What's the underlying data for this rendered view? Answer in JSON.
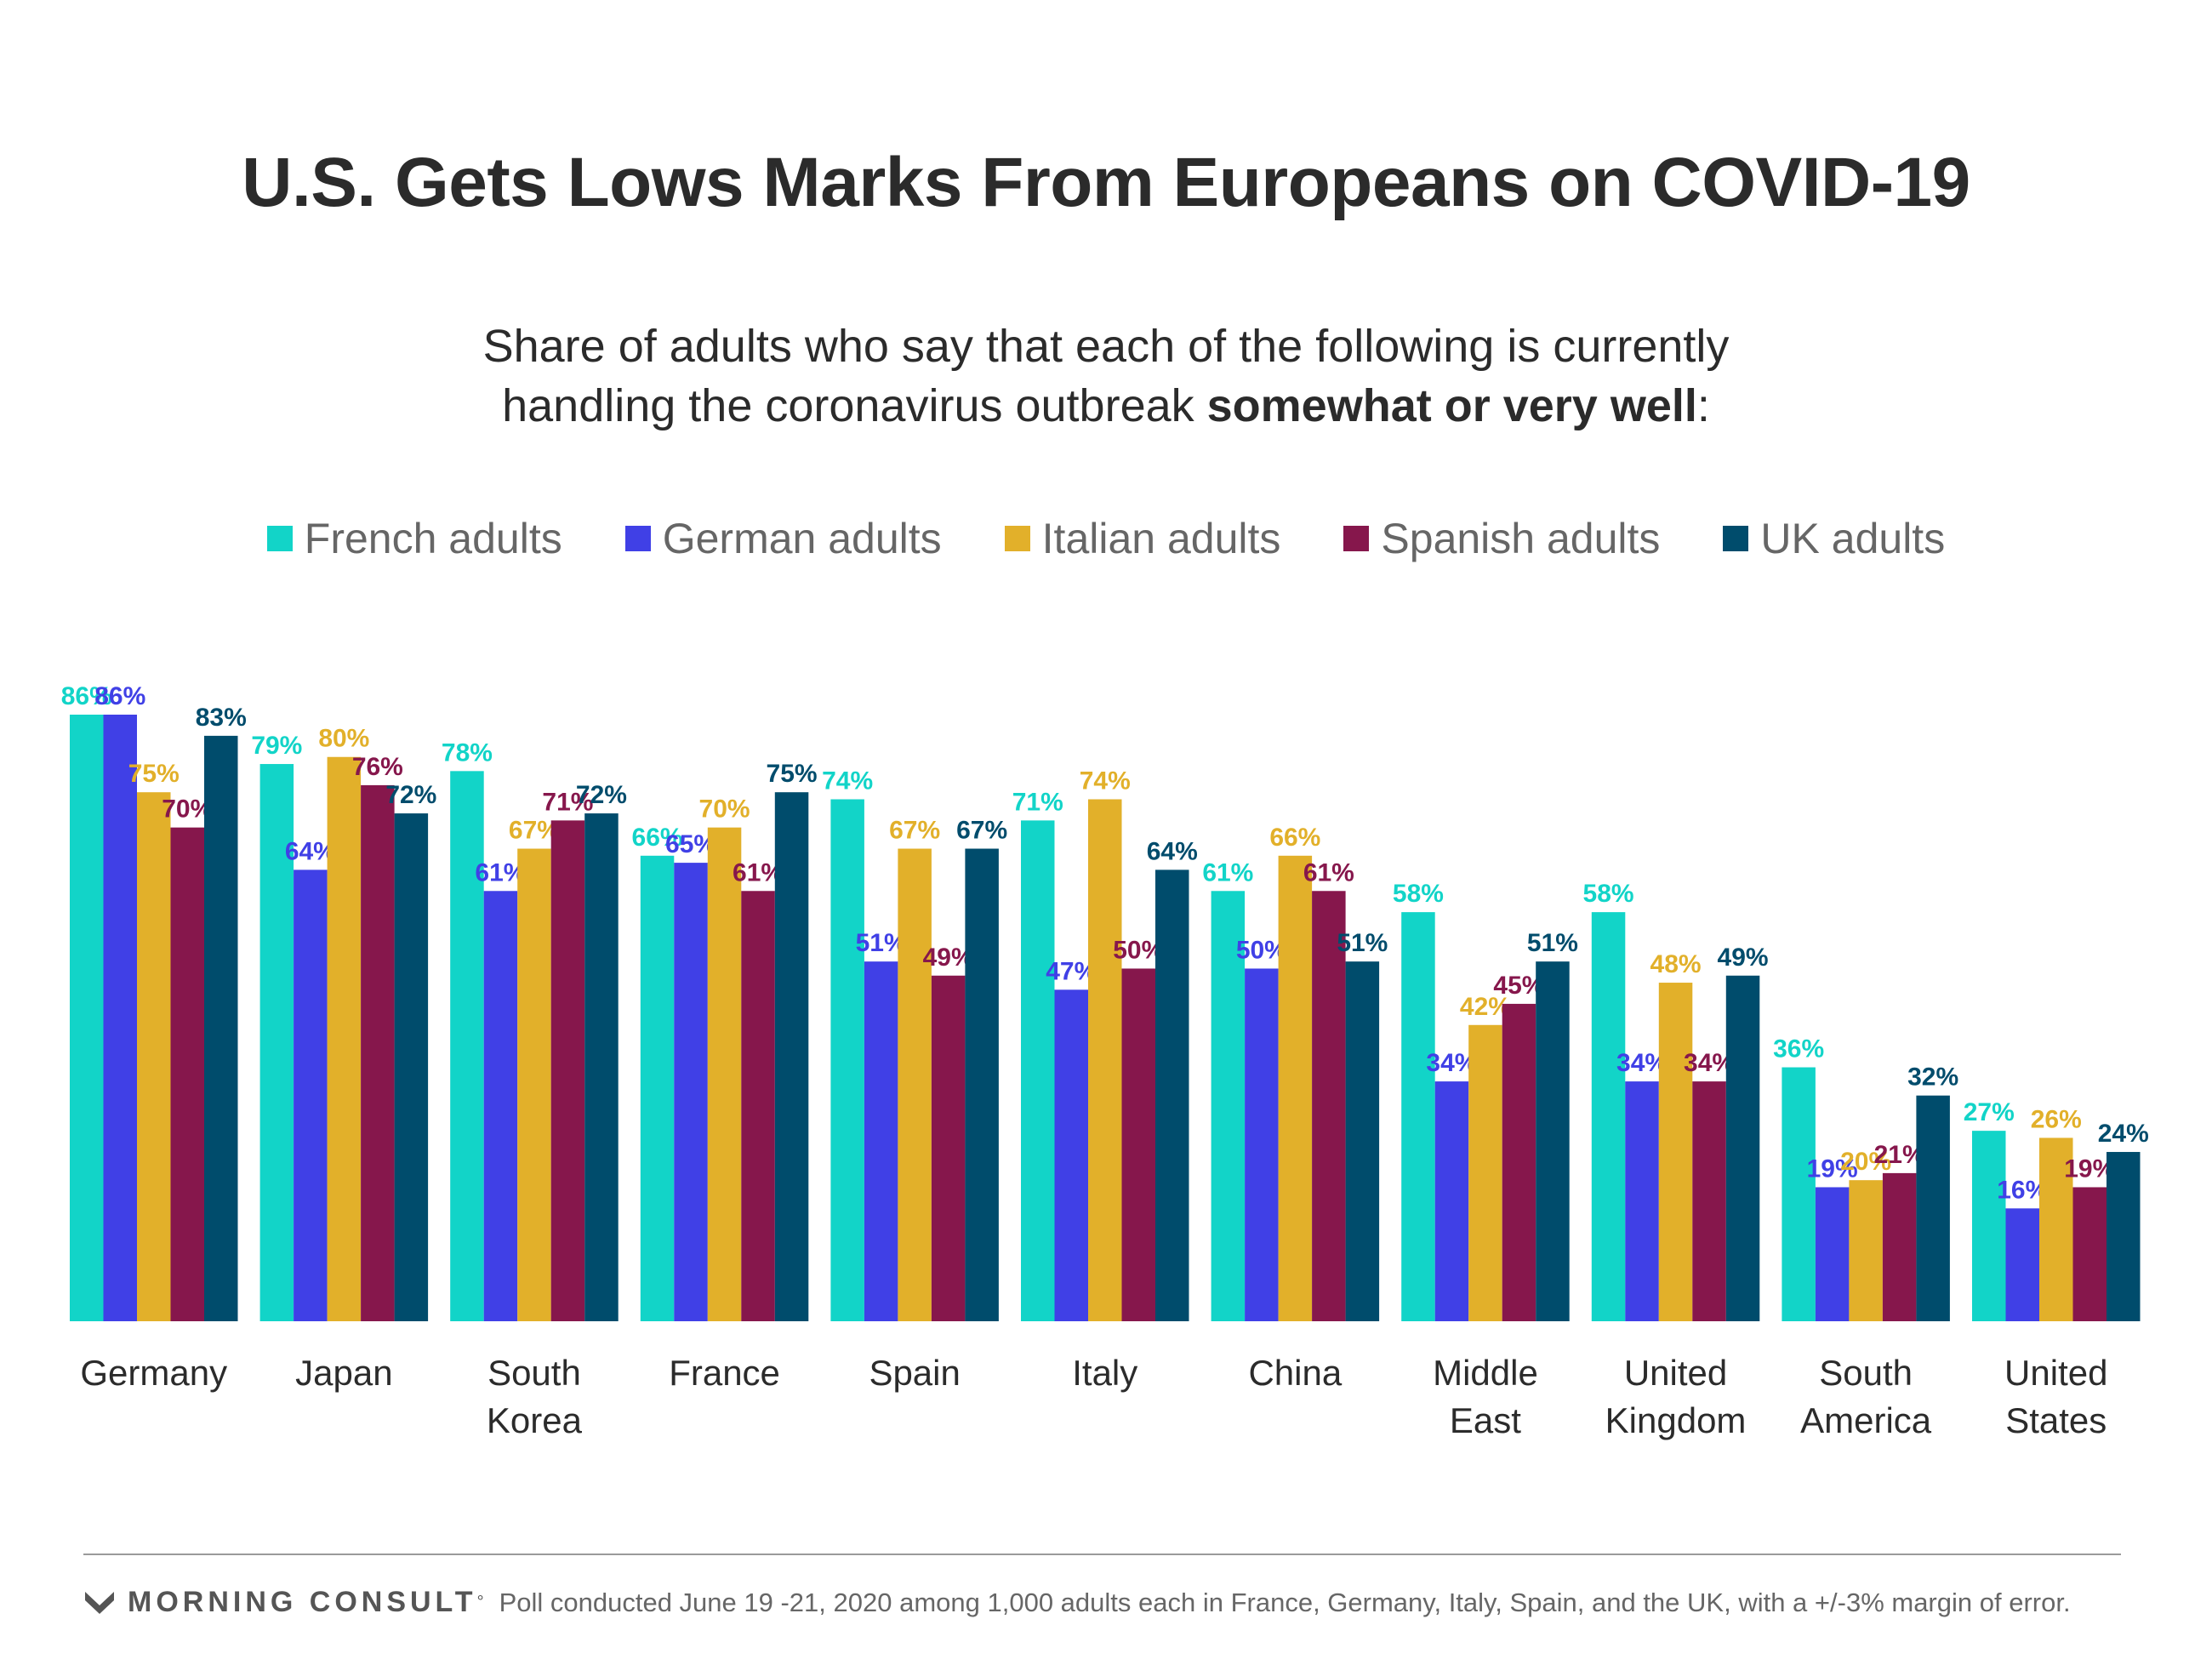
{
  "title": "U.S. Gets Lows Marks From Europeans on COVID-19",
  "subtitle": {
    "line1": "Share of adults who say that each of the following is currently",
    "line2_pre": "handling the coronavirus outbreak ",
    "line2_bold": "somewhat or very well",
    "line2_post": ":"
  },
  "footer": {
    "brand": "MORNING CONSULT",
    "brand_mark": "°",
    "note": "Poll conducted June 19 -21, 2020 among 1,000 adults each in France, Germany, Italy, Spain, and the UK, with a +/-3% margin of error."
  },
  "chart_data": {
    "type": "bar",
    "title": "U.S. Gets Lows Marks From Europeans on COVID-19",
    "ylim": [
      0,
      100
    ],
    "grid": false,
    "legend_position": "top",
    "value_suffix": "%",
    "categories": [
      [
        "Germany"
      ],
      [
        "Japan"
      ],
      [
        "South",
        "Korea"
      ],
      [
        "France"
      ],
      [
        "Spain"
      ],
      [
        "Italy"
      ],
      [
        "China"
      ],
      [
        "Middle",
        "East"
      ],
      [
        "United",
        "Kingdom"
      ],
      [
        "South",
        "America"
      ],
      [
        "United",
        "States"
      ]
    ],
    "series": [
      {
        "name": "French adults",
        "color": "#12d4c8",
        "values": [
          86,
          79,
          78,
          66,
          74,
          71,
          61,
          58,
          58,
          36,
          27
        ]
      },
      {
        "name": "German adults",
        "color": "#4040e6",
        "values": [
          86,
          64,
          61,
          65,
          51,
          47,
          50,
          34,
          34,
          19,
          16
        ]
      },
      {
        "name": "Italian adults",
        "color": "#e2b02a",
        "values": [
          75,
          80,
          67,
          70,
          67,
          74,
          66,
          42,
          48,
          20,
          26
        ]
      },
      {
        "name": "Spanish adults",
        "color": "#86174c",
        "values": [
          70,
          76,
          71,
          61,
          49,
          50,
          61,
          45,
          34,
          21,
          19
        ]
      },
      {
        "name": "UK adults",
        "color": "#004c6c",
        "values": [
          83,
          72,
          72,
          75,
          67,
          64,
          51,
          51,
          49,
          32,
          24
        ]
      }
    ]
  }
}
